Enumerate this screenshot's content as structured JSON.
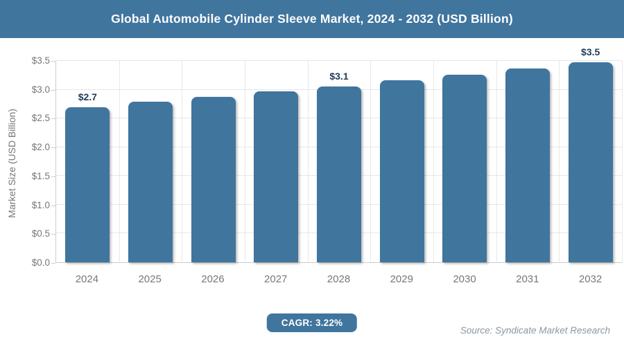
{
  "header": {
    "title": "Global Automobile Cylinder Sleeve Market, 2024 - 2032 (USD Billion)"
  },
  "footer": {
    "cagr_label": "CAGR: 3.22%",
    "source": "Source: Syndicate Market Research"
  },
  "colors": {
    "accent": "#40759e",
    "data_label": "#1f3a5a",
    "axis_text": "#777777",
    "grid": "#e7e7e7",
    "axis_line": "#cccccc",
    "source_text": "#8a97a2",
    "background": "#ffffff"
  },
  "chart_data": {
    "type": "bar",
    "title": "Global Automobile Cylinder Sleeve Market, 2024 - 2032 (USD Billion)",
    "categories": [
      "2024",
      "2025",
      "2026",
      "2027",
      "2028",
      "2029",
      "2030",
      "2031",
      "2032"
    ],
    "values": [
      2.7,
      2.79,
      2.88,
      2.97,
      3.06,
      3.16,
      3.26,
      3.37,
      3.48
    ],
    "point_labels": [
      "$2.7",
      "",
      "",
      "",
      "$3.1",
      "",
      "",
      "",
      "$3.5"
    ],
    "xlabel": "",
    "ylabel": "Market Size (USD Billion)",
    "ylim": [
      0,
      3.5
    ],
    "ytick_labels": [
      "$0.0",
      "$0.5",
      "$1.0",
      "$1.5",
      "$2.0",
      "$2.5",
      "$3.0",
      "$3.5"
    ],
    "grid": "on",
    "legend": "none",
    "cagr_percent": 3.22
  }
}
